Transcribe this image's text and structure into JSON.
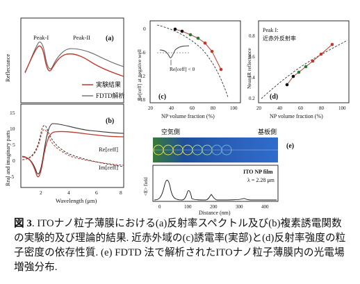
{
  "panel_a": {
    "label": "(a)",
    "ylabel": "Reflectance",
    "peak1": "Peak-I",
    "peak2": "Peak-II",
    "legend": [
      "実験結果",
      "FDTD解析"
    ],
    "colors": {
      "exp": "#c0392b",
      "fdtd": "#555555"
    }
  },
  "panel_b": {
    "label": "(b)",
    "ylabel": "Real and imaginary parts",
    "xlabel": "Wavelength (μm)",
    "xticks": [
      "2",
      "4",
      "6",
      "8"
    ],
    "yticks": [
      "15",
      "10",
      "5",
      "0",
      "-5"
    ],
    "re_label": "Re[εeff]",
    "im_label": "Im[εeff]"
  },
  "panel_c": {
    "label": "(c)",
    "ylabel": "Re[εeff] at negative well",
    "xlabel": "NP volume fraction (%)",
    "xticks": [
      "20",
      "40",
      "60",
      "80",
      "100"
    ],
    "yticks": [
      "0",
      "-6",
      "-12",
      "-18"
    ],
    "inset_label": "Re[εeff] < 0"
  },
  "panel_d": {
    "label": "(d)",
    "ylabel": "Near IR reflectance",
    "xlabel": "NP volume fraction (%)",
    "xticks": [
      "20",
      "40",
      "60",
      "80",
      "100"
    ],
    "yticks": [
      "0.8",
      "0.6",
      "0.4",
      "0.2"
    ],
    "note1": "Peak I:",
    "note2": "近赤外反射率"
  },
  "panel_e": {
    "label": "(e)",
    "air_side": "空気側",
    "substrate_side": "基板側",
    "film_label": "ITO NP film",
    "lambda_label": "λ = 2.28 μm",
    "ylabel": "<E> field",
    "xlabel": "Distance (nm)",
    "xticks": [
      "0",
      "100",
      "200",
      "300",
      "400"
    ]
  },
  "caption": {
    "fig": "図 3",
    "text": ". ITOナノ粒子薄膜における(a)反射率スペクトル及び(b)複素誘電関数の実験的及び理論的結果. 近赤外域の(c)誘電率(実部)と(d)反射率強度の粒子密度の依存性質. (e) FDTD 法で解析されたITOナノ粒子薄膜内の光電場増強分布."
  }
}
